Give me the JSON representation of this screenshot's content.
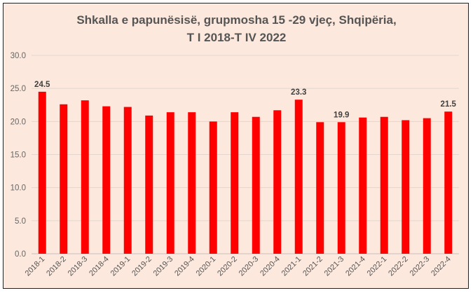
{
  "chart_data": {
    "type": "bar",
    "title_lines": [
      "Shkalla e papunësisë, grupmosha 15 -29 vjeç, Shqipëria,",
      "T I 2018-T IV 2022"
    ],
    "categories": [
      "2018-1",
      "2018-2",
      "2018-3",
      "2018-4",
      "2019-1",
      "2019-2",
      "2019-3",
      "2019-4",
      "2020-1",
      "2020-2",
      "2020-3",
      "2020-4",
      "2021-1",
      "2021-2",
      "2021-3",
      "2021-4",
      "2022-1",
      "2022-2",
      "2022-3",
      "2022-4"
    ],
    "values": [
      24.5,
      22.6,
      23.2,
      22.3,
      22.2,
      20.9,
      21.4,
      21.4,
      20.0,
      21.4,
      20.7,
      21.7,
      23.3,
      19.9,
      19.9,
      20.6,
      20.7,
      20.2,
      20.5,
      21.5
    ],
    "data_labels": {
      "0": "24.5",
      "12": "23.3",
      "14": "19.9",
      "19": "21.5"
    },
    "yticks": [
      "0.0",
      "5.0",
      "10.0",
      "15.0",
      "20.0",
      "25.0",
      "30.0"
    ],
    "ylim": [
      0,
      30
    ],
    "grid": true,
    "bar_color": "#ff0000",
    "background": "#fce8dc",
    "xlabel": "",
    "ylabel": ""
  }
}
